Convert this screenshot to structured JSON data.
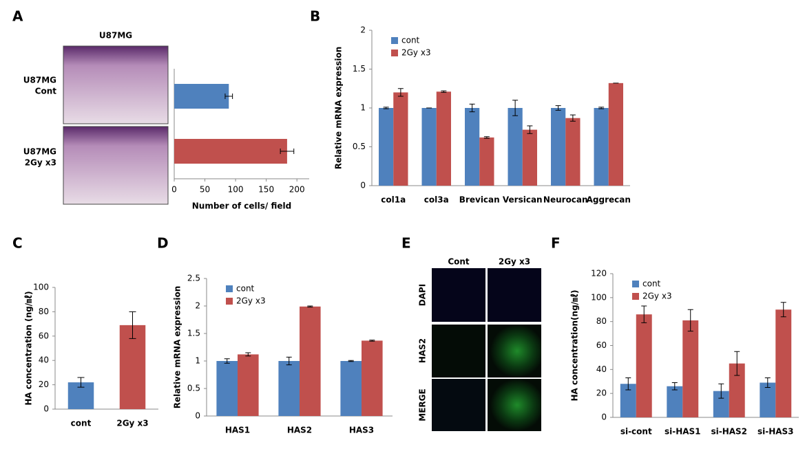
{
  "chart_data": [
    {
      "type": "bar",
      "orientation": "horizontal",
      "panel": "A",
      "title": "U87MG",
      "row_labels": [
        [
          "U87MG",
          "Cont"
        ],
        [
          "U87MG",
          "2Gy x3"
        ]
      ],
      "xlabel": "Number of cells/ field",
      "values": [
        89,
        184
      ],
      "errors": [
        6,
        11
      ],
      "colors": [
        "#4f81bd",
        "#c0504d"
      ],
      "xlim": [
        0,
        220
      ],
      "xticks": [
        0,
        50,
        100,
        150,
        200
      ]
    },
    {
      "type": "bar",
      "panel": "B",
      "ylabel": "Relative mRNA expression",
      "categories": [
        "col1a",
        "col3a",
        "Brevican",
        "Versican",
        "Neurocan",
        "Aggrecan"
      ],
      "series": [
        {
          "name": "cont",
          "color": "#4f81bd",
          "values": [
            1,
            1,
            1,
            1,
            1,
            1
          ],
          "errors": [
            0.01,
            0,
            0.05,
            0.1,
            0.03,
            0.01
          ]
        },
        {
          "name": "2Gy x3",
          "color": "#c0504d",
          "values": [
            1.2,
            1.21,
            0.62,
            0.72,
            0.87,
            1.32
          ],
          "errors": [
            0.05,
            0.01,
            0.01,
            0.05,
            0.04,
            0
          ]
        }
      ],
      "legend": "upper left",
      "ylim": [
        0,
        2
      ],
      "yticks": [
        0,
        0.5,
        1,
        1.5,
        2
      ]
    },
    {
      "type": "bar",
      "panel": "C",
      "ylabel": "HA concentration  (ng/㎖)",
      "categories": [
        "cont",
        "2Gy x3"
      ],
      "values": [
        22,
        69
      ],
      "errors": [
        4,
        11
      ],
      "colors": [
        "#4f81bd",
        "#c0504d"
      ],
      "ylim": [
        0,
        100
      ],
      "yticks": [
        0,
        20,
        40,
        60,
        80,
        100
      ]
    },
    {
      "type": "bar",
      "panel": "D",
      "ylabel": "Relative mRNA  expression",
      "categories": [
        "HAS1",
        "HAS2",
        "HAS3"
      ],
      "series": [
        {
          "name": "cont",
          "color": "#4f81bd",
          "values": [
            1,
            1,
            1
          ],
          "errors": [
            0.04,
            0.07,
            0.01
          ]
        },
        {
          "name": "2Gy x3",
          "color": "#c0504d",
          "values": [
            1.12,
            1.99,
            1.37
          ],
          "errors": [
            0.03,
            0.01,
            0.01
          ]
        }
      ],
      "legend": "upper left",
      "ylim": [
        0,
        2.5
      ],
      "yticks": [
        0,
        0.5,
        1,
        1.5,
        2,
        2.5
      ]
    },
    {
      "type": "bar",
      "panel": "F",
      "ylabel": "HA concentration(ng/㎖)",
      "categories": [
        "si-cont",
        "si-HAS1",
        "si-HAS2",
        "si-HAS3"
      ],
      "series": [
        {
          "name": "cont",
          "color": "#4f81bd",
          "values": [
            28,
            26,
            22,
            29
          ],
          "errors": [
            5,
            3,
            6,
            4
          ]
        },
        {
          "name": "2Gy x3",
          "color": "#c0504d",
          "values": [
            86,
            81,
            45,
            90
          ],
          "errors": [
            7,
            9,
            10,
            6
          ]
        }
      ],
      "legend": "upper left",
      "ylim": [
        0,
        120
      ],
      "yticks": [
        0,
        20,
        40,
        60,
        80,
        100,
        120
      ]
    }
  ],
  "figure_e": {
    "panel": "E",
    "columns": [
      "Cont",
      "2Gy x3"
    ],
    "rows": [
      "DAPI",
      "HAS2",
      "MERGE"
    ]
  }
}
